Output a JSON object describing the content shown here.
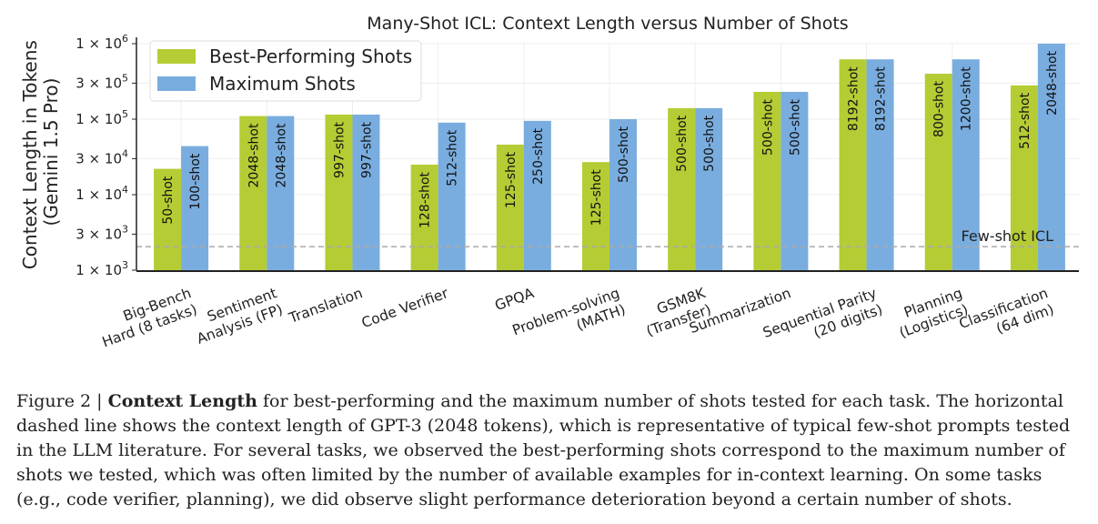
{
  "chart_data": {
    "type": "bar",
    "title": "Many-Shot ICL: Context Length versus Number of Shots",
    "ylabel_lines": [
      "Context Length in Tokens",
      "(Gemini 1.5 Pro)"
    ],
    "yscale": "log",
    "ylim": [
      1000,
      1000000
    ],
    "yticks": [
      {
        "value": 1000,
        "mant": "1 × 10",
        "exp": "3"
      },
      {
        "value": 3000,
        "mant": "3 × 10",
        "exp": "3"
      },
      {
        "value": 10000,
        "mant": "1 × 10",
        "exp": "4"
      },
      {
        "value": 30000,
        "mant": "3 × 10",
        "exp": "4"
      },
      {
        "value": 100000,
        "mant": "1 × 10",
        "exp": "5"
      },
      {
        "value": 300000,
        "mant": "3 × 10",
        "exp": "5"
      },
      {
        "value": 1000000,
        "mant": "1 × 10",
        "exp": "6"
      }
    ],
    "categories": [
      [
        "Big-Bench",
        "Hard (8 tasks)"
      ],
      [
        "Sentiment",
        "Analysis (FP)"
      ],
      [
        "Translation"
      ],
      [
        "Code Verifier"
      ],
      [
        "GPQA"
      ],
      [
        "Problem-solving",
        "(MATH)"
      ],
      [
        "GSM8K",
        "(Transfer)"
      ],
      [
        "Summarization"
      ],
      [
        "Sequential Parity",
        "(20 digits)"
      ],
      [
        "Planning",
        "(Logistics)"
      ],
      [
        "Classification",
        "(64 dim)"
      ]
    ],
    "series": [
      {
        "name": "Best-Performing Shots",
        "color": "#b5cc34",
        "values": [
          22000,
          110000,
          115000,
          25000,
          46000,
          27000,
          140000,
          230000,
          620000,
          400000,
          280000
        ],
        "labels": [
          "50-shot",
          "2048-shot",
          "997-shot",
          "128-shot",
          "125-shot",
          "125-shot",
          "500-shot",
          "500-shot",
          "8192-shot",
          "800-shot",
          "512-shot"
        ]
      },
      {
        "name": "Maximum Shots",
        "color": "#7aaddf",
        "values": [
          44000,
          110000,
          115000,
          90000,
          95000,
          100000,
          140000,
          230000,
          620000,
          620000,
          1000000
        ],
        "labels": [
          "100-shot",
          "2048-shot",
          "997-shot",
          "512-shot",
          "250-shot",
          "500-shot",
          "500-shot",
          "500-shot",
          "8192-shot",
          "1200-shot",
          "2048-shot"
        ]
      }
    ],
    "reference_line": {
      "value": 2048,
      "label": "Few-shot ICL",
      "color": "#aaaaaa"
    },
    "legend": "top-left",
    "grid": true
  },
  "caption": {
    "prefix": "Figure 2 | ",
    "bold": "Context Length",
    "text": " for best-performing and the maximum number of shots tested for each task. The horizontal dashed line shows the context length of GPT-3 (2048 tokens), which is representative of typical few-shot prompts tested in the LLM literature. For several tasks, we observed the best-performing shots correspond to the maximum number of shots we tested, which was often limited by the number of available examples for in-context learning. On some tasks (e.g., code verifier, planning), we did observe slight performance deterioration beyond a certain number of shots."
  }
}
